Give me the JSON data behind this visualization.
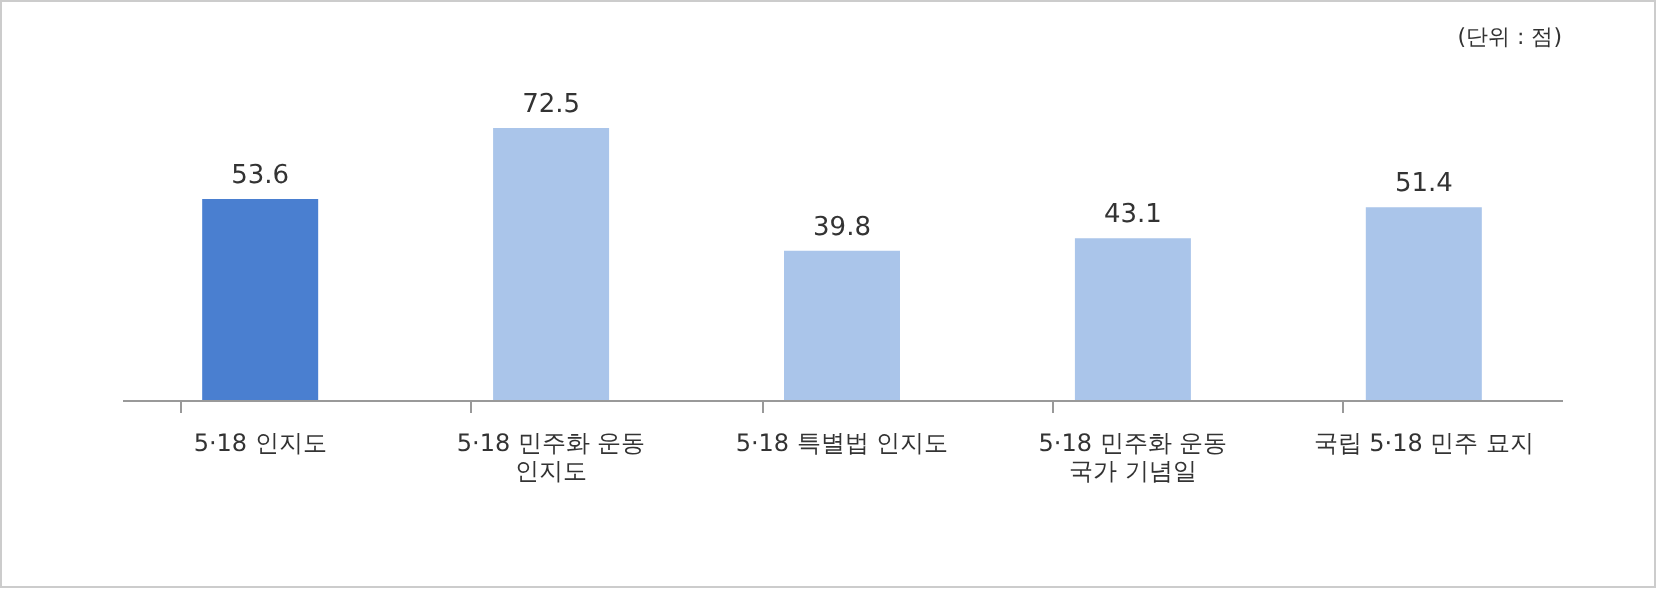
{
  "chart_data": {
    "type": "bar",
    "categories": [
      "5·18 인지도",
      "5·18 민주화 운동 인지도",
      "5·18 특별법 인지도",
      "5·18 민주화 운동 국가 기념일",
      "국립 5·18 민주 묘지"
    ],
    "values": [
      53.6,
      72.5,
      39.8,
      43.1,
      51.4
    ],
    "colors": [
      "#4a7fd0",
      "#aac5ea",
      "#aac5ea",
      "#aac5ea",
      "#aac5ea"
    ],
    "data_labels": true,
    "annotations": [
      "(단위 : 점)"
    ]
  }
}
